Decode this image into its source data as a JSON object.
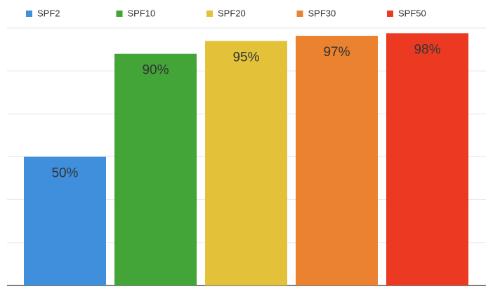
{
  "chart_data": {
    "type": "bar",
    "categories": [
      null
    ],
    "series": [
      {
        "name": "SPF2",
        "color": "#3f8fdc",
        "values": [
          50
        ],
        "value_labels": [
          "50%"
        ]
      },
      {
        "name": "SPF10",
        "color": "#43a437",
        "values": [
          90
        ],
        "value_labels": [
          "90%"
        ]
      },
      {
        "name": "SPF20",
        "color": "#e3c23a",
        "values": [
          95
        ],
        "value_labels": [
          "95%"
        ]
      },
      {
        "name": "SPF30",
        "color": "#ea8230",
        "values": [
          97
        ],
        "value_labels": [
          "97%"
        ]
      },
      {
        "name": "SPF50",
        "color": "#ec3a22",
        "values": [
          98
        ],
        "value_labels": [
          "98%"
        ]
      }
    ],
    "ylim": [
      0,
      100
    ],
    "yticks": [
      0,
      16.67,
      33.33,
      50,
      66.67,
      83.33,
      100
    ],
    "tick_labels": false,
    "grid": true,
    "legend": "top"
  }
}
